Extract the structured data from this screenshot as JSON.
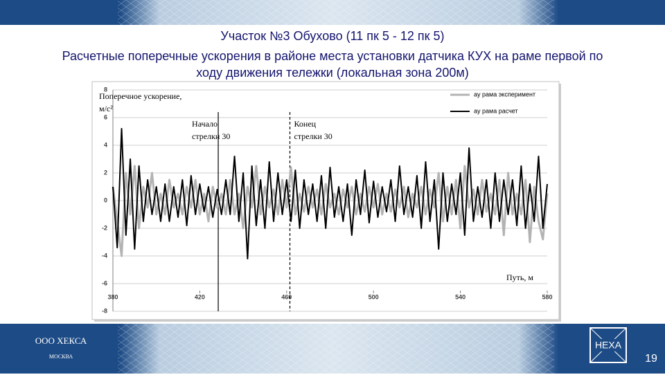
{
  "slide": {
    "title_lines": [
      "Участок №3 Обухово (11 пк 5 - 12 пк 5)",
      "Расчетные поперечные ускорения в районе места установки датчика КУХ на раме первой по",
      "ходу движения тележки (локальная зона 200м)"
    ],
    "company": "ООО ХЕКСА",
    "city": "МОСКВА",
    "logo_text": "HEXA",
    "page_number": "19"
  },
  "chart_data": {
    "type": "line",
    "y_label_lines": [
      "Поперечное ускорение,",
      "м/с²"
    ],
    "x_label": "Путь, м",
    "x": [
      380,
      382,
      384,
      386,
      388,
      390,
      392,
      394,
      396,
      398,
      400,
      402,
      404,
      406,
      408,
      410,
      412,
      414,
      416,
      418,
      420,
      422,
      424,
      426,
      428,
      430,
      432,
      434,
      436,
      438,
      440,
      442,
      444,
      446,
      448,
      450,
      452,
      454,
      456,
      458,
      460,
      462,
      464,
      466,
      468,
      470,
      472,
      474,
      476,
      478,
      480,
      482,
      484,
      486,
      488,
      490,
      492,
      494,
      496,
      498,
      500,
      502,
      504,
      506,
      508,
      510,
      512,
      514,
      516,
      518,
      520,
      522,
      524,
      526,
      528,
      530,
      532,
      534,
      536,
      538,
      540,
      542,
      544,
      546,
      548,
      550,
      552,
      554,
      556,
      558,
      560,
      562,
      564,
      566,
      568,
      570,
      572,
      574,
      576,
      578,
      580
    ],
    "series": [
      {
        "name": "ay рама эксперимент",
        "color": "#b3b3b3",
        "values": [
          1,
          -1.5,
          -4,
          2,
          -1,
          2.5,
          -2,
          1,
          -0.5,
          2,
          -1,
          0.5,
          -1,
          1.5,
          -0.5,
          0.5,
          -1,
          1,
          -0.5,
          1.5,
          -1,
          0.5,
          -1.5,
          1,
          -0.5,
          0.5,
          -1,
          1.5,
          -1,
          0.5,
          -2,
          1,
          -0.5,
          2.5,
          -1,
          1,
          -0.5,
          0.8,
          -1,
          1.5,
          -0.5,
          2.4,
          -1,
          0.5,
          -0.8,
          1,
          -0.5,
          0.8,
          -1,
          1.2,
          -0.5,
          0.5,
          -1,
          0.8,
          -0.5,
          1,
          -1,
          0.5,
          -0.8,
          1,
          -0.5,
          1.2,
          -1,
          0.5,
          -0.8,
          0.8,
          -0.5,
          1,
          -1.2,
          0.5,
          -0.5,
          1,
          -1,
          0.8,
          -0.5,
          2,
          -1.5,
          1,
          -1,
          1.5,
          -2,
          2.5,
          -0.5,
          0.8,
          -1,
          1.5,
          -0.8,
          0.5,
          -1,
          1.5,
          -2.5,
          2,
          -1,
          0.5,
          -1,
          1.5,
          -3,
          1,
          -1.5,
          -2.8,
          0.5
        ]
      },
      {
        "name": "ay рама расчет",
        "color": "#000000",
        "values": [
          1,
          -3.4,
          5.2,
          -2.5,
          3,
          -3.5,
          2.5,
          -1.5,
          1.5,
          -1,
          1,
          -1.5,
          1.2,
          -1.5,
          1,
          -1.2,
          1.5,
          -1.8,
          1.8,
          -1,
          1.2,
          -0.8,
          1,
          -1.2,
          0.8,
          -1,
          1.5,
          -1,
          3.2,
          -1.5,
          2,
          -4.2,
          2.5,
          -1.8,
          1.5,
          -2,
          2.8,
          -1.5,
          2,
          -1,
          1.5,
          -1.5,
          2.2,
          -2,
          1.5,
          -1,
          1.2,
          -1.5,
          1.8,
          -2,
          2.4,
          -1.2,
          1,
          -1.5,
          1.2,
          -2.5,
          1.5,
          -1,
          2.2,
          -1.6,
          1.4,
          -1.2,
          1,
          -0.8,
          1.5,
          -1.5,
          2.5,
          -1,
          1,
          -1.2,
          1.8,
          -2,
          2.8,
          -1.5,
          1.5,
          -3.5,
          2,
          -1.5,
          1.2,
          -1,
          2,
          -2.5,
          3.8,
          -1.5,
          1,
          -1.2,
          1.5,
          -2,
          2,
          -1.5,
          1.5,
          -1,
          1.5,
          -1.8,
          2.5,
          -2,
          1.2,
          -1.5,
          3.2,
          -2,
          1.2
        ]
      }
    ],
    "xlim": [
      380,
      580
    ],
    "xticks": [
      380,
      420,
      460,
      500,
      540,
      580
    ],
    "ylim": [
      -8,
      8
    ],
    "yticks": [
      -8,
      -6,
      -4,
      -2,
      0,
      2,
      4,
      6,
      8
    ],
    "grid": true,
    "legend": "upper right",
    "annotations": [
      {
        "x": 428.5,
        "text": [
          "Начало",
          "стрелки 30"
        ],
        "line_style": "solid"
      },
      {
        "x": 461.5,
        "text": [
          "Конец",
          "стрелки 30"
        ],
        "line_style": "dashed"
      }
    ]
  }
}
